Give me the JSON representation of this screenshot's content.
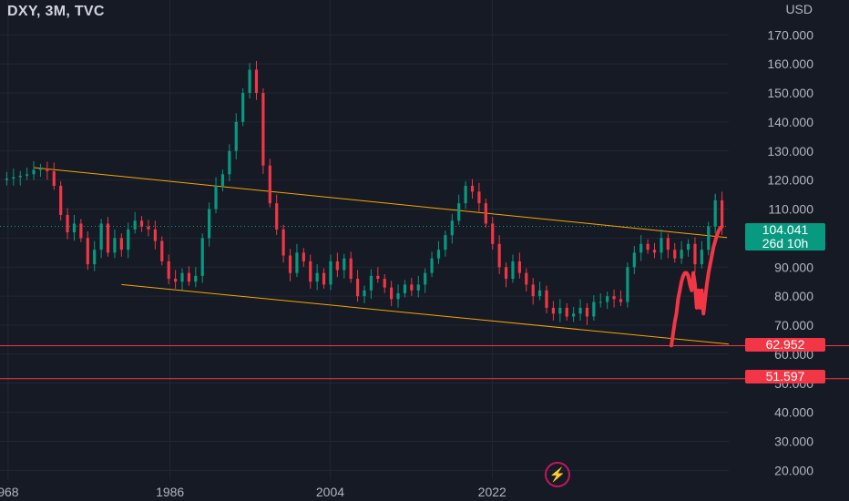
{
  "header": {
    "symbol": "DXY, 3M, TVC",
    "currency": "USD"
  },
  "price_tags": {
    "current_price": "104.041",
    "countdown": "26d 10h",
    "level_a": "62.952",
    "level_b": "51.597"
  },
  "icons": {
    "bottom": "lightning-bolt-icon"
  },
  "colors": {
    "background": "#161a25",
    "bullish": "#089981",
    "bearish": "#f23645",
    "trendline": "#f7a600",
    "horizontal_line": "#f23645",
    "grid": "#232733",
    "axis_text": "#b2b5be"
  },
  "chart_data": {
    "type": "candlestick",
    "title": "DXY, 3M, TVC",
    "xlabel": "",
    "ylabel": "",
    "x_ticks": [
      "968",
      "1986",
      "2004",
      "2022"
    ],
    "y_ticks": [
      20,
      30,
      40,
      50,
      60,
      70,
      80,
      90,
      100,
      110,
      120,
      130,
      140,
      150,
      160,
      170
    ],
    "y_tick_labels": [
      "20.000",
      "30.000",
      "40.000",
      "50.000",
      "60.000",
      "70.000",
      "80.000",
      "90.000",
      "100.000",
      "110.000",
      "120.000",
      "130.000",
      "140.000",
      "150.000",
      "160.000",
      "170.000"
    ],
    "ylim": [
      17,
      182
    ],
    "xlim": [
      1967.5,
      2048.5
    ],
    "series_hist": [
      {
        "name": "historical",
        "points": [
          [
            1967.5,
            120.0
          ],
          [
            1968.25,
            120.5
          ],
          [
            1969.0,
            121.0
          ],
          [
            1969.75,
            121.5
          ],
          [
            1970.5,
            122.0
          ],
          [
            1971.25,
            123.5
          ],
          [
            1972.0,
            124.0
          ],
          [
            1972.75,
            123.0
          ],
          [
            1973.5,
            118.0
          ],
          [
            1974.25,
            108.0
          ],
          [
            1975.0,
            102.0
          ],
          [
            1975.75,
            105.0
          ],
          [
            1976.5,
            100.0
          ],
          [
            1977.25,
            91.0
          ],
          [
            1978.0,
            96.0
          ],
          [
            1978.75,
            105.0
          ],
          [
            1979.5,
            95.0
          ],
          [
            1980.25,
            100.0
          ],
          [
            1981.0,
            96.0
          ],
          [
            1981.75,
            103.0
          ],
          [
            1982.5,
            106.0
          ],
          [
            1983.25,
            104.0
          ],
          [
            1984.0,
            103.0
          ],
          [
            1984.75,
            99.0
          ],
          [
            1985.5,
            92.0
          ],
          [
            1986.25,
            86.0
          ],
          [
            1987.0,
            85.0
          ],
          [
            1987.75,
            88.0
          ],
          [
            1988.5,
            85.0
          ],
          [
            1989.25,
            87.0
          ],
          [
            1990.0,
            100.0
          ],
          [
            1990.75,
            110.0
          ],
          [
            1991.5,
            118.0
          ],
          [
            1992.25,
            122.0
          ],
          [
            1993.0,
            130.0
          ],
          [
            1993.75,
            140.0
          ],
          [
            1994.5,
            150.0
          ],
          [
            1995.25,
            158.0
          ],
          [
            1996.0,
            150.0
          ],
          [
            1996.75,
            125.0
          ],
          [
            1997.5,
            112.0
          ],
          [
            1998.25,
            103.0
          ],
          [
            1999.0,
            94.0
          ],
          [
            1999.75,
            88.0
          ],
          [
            2000.5,
            95.0
          ],
          [
            2001.25,
            92.0
          ],
          [
            2002.0,
            85.0
          ],
          [
            2002.75,
            88.0
          ],
          [
            2003.5,
            84.0
          ],
          [
            2004.25,
            92.0
          ],
          [
            2005.0,
            89.0
          ],
          [
            2005.75,
            93.0
          ],
          [
            2006.5,
            86.0
          ],
          [
            2007.25,
            80.0
          ],
          [
            2008.0,
            82.0
          ],
          [
            2008.75,
            87.0
          ],
          [
            2009.5,
            86.0
          ],
          [
            2010.25,
            83.0
          ],
          [
            2011.0,
            79.0
          ],
          [
            2011.75,
            81.0
          ],
          [
            2012.5,
            84.0
          ],
          [
            2013.25,
            82.0
          ],
          [
            2014.0,
            84.0
          ],
          [
            2014.75,
            88.0
          ],
          [
            2015.5,
            93.0
          ],
          [
            2016.25,
            96.0
          ],
          [
            2017.0,
            101.0
          ],
          [
            2017.75,
            106.0
          ],
          [
            2018.5,
            112.0
          ],
          [
            2019.25,
            118.0
          ],
          [
            2020.0,
            116.0
          ],
          [
            2020.75,
            112.0
          ],
          [
            2021.5,
            105.0
          ],
          [
            2022.25,
            98.0
          ],
          [
            2023.0,
            90.0
          ],
          [
            2023.75,
            86.0
          ],
          [
            2024.5,
            92.0
          ],
          [
            2025.25,
            88.0
          ],
          [
            2026.0,
            84.0
          ],
          [
            2026.75,
            80.0
          ],
          [
            2027.5,
            82.0
          ],
          [
            2028.25,
            76.0
          ],
          [
            2029.0,
            74.0
          ],
          [
            2029.75,
            76.0
          ],
          [
            2030.5,
            73.0
          ],
          [
            2031.25,
            74.0
          ],
          [
            2032.0,
            76.0
          ],
          [
            2032.75,
            73.0
          ],
          [
            2033.5,
            78.0
          ],
          [
            2034.25,
            78.0
          ],
          [
            2035.0,
            80.0
          ],
          [
            2035.75,
            79.0
          ],
          [
            2036.5,
            78.0
          ],
          [
            2037.25,
            90.0
          ],
          [
            2038.0,
            95.0
          ],
          [
            2038.75,
            98.0
          ],
          [
            2039.5,
            96.0
          ],
          [
            2040.25,
            95.0
          ],
          [
            2041.0,
            100.0
          ],
          [
            2041.75,
            96.0
          ],
          [
            2042.5,
            93.0
          ],
          [
            2043.25,
            96.0
          ],
          [
            2044.0,
            98.0
          ],
          [
            2044.75,
            91.0
          ],
          [
            2045.5,
            96.0
          ],
          [
            2046.25,
            104.0
          ],
          [
            2047.0,
            113.0
          ],
          [
            2047.75,
            104.0
          ]
        ]
      }
    ],
    "series_projection": [
      {
        "name": "projection",
        "points": [
          [
            2047.75,
            104.0
          ]
        ]
      }
    ],
    "trendlines": [
      {
        "name": "upper",
        "from": [
          1971.25,
          124.3
        ],
        "to": [
          2048.3,
          100.2
        ]
      },
      {
        "name": "lower",
        "from": [
          1981.0,
          84.0
        ],
        "to": [
          2048.5,
          63.5
        ]
      }
    ],
    "horizontal_levels": [
      62.952,
      51.597
    ],
    "current_price_level": 104.041,
    "grid": true
  }
}
